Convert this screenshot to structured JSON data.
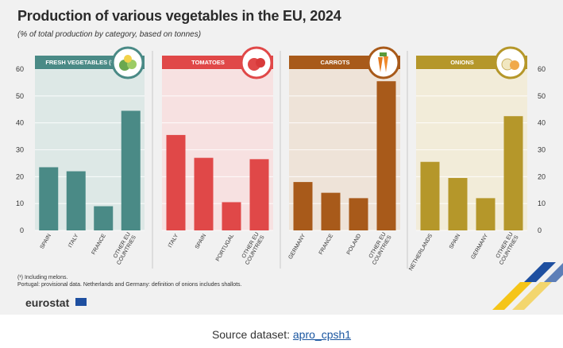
{
  "title": "Production of various vegetables in the EU, 2024",
  "subtitle": "(% of total production by category, based on tonnes)",
  "footnotes": [
    "(¹) Including melons.",
    "Portugal: provisional data. Netherlands and Germany: definition of onions includes shallots."
  ],
  "logo_text": "eurostat",
  "source_label": "Source dataset:",
  "source_link": "apro_cpsh1",
  "chart_data": [
    {
      "type": "bar",
      "title": "FRESH VEGETABLES (¹)",
      "categories": [
        "SPAIN",
        "ITALY",
        "FRANCE",
        "OTHER EU COUNTRIES"
      ],
      "values": [
        23.5,
        22,
        9,
        44.5
      ],
      "ylim": [
        0,
        60
      ],
      "yticks": [
        0,
        10,
        20,
        30,
        40,
        50,
        60
      ],
      "color": "#4a8a86",
      "bg": "#dde8e6",
      "icon": "vegetables-icon"
    },
    {
      "type": "bar",
      "title": "TOMATOES",
      "categories": [
        "ITALY",
        "SPAIN",
        "PORTUGAL",
        "OTHER EU COUNTRIES"
      ],
      "values": [
        35.5,
        27,
        10.5,
        26.5
      ],
      "ylim": [
        0,
        60
      ],
      "yticks": [
        0,
        10,
        20,
        30,
        40,
        50,
        60
      ],
      "color": "#e04848",
      "bg": "#f7e1e1",
      "icon": "tomato-icon"
    },
    {
      "type": "bar",
      "title": "CARROTS",
      "categories": [
        "GERMANY",
        "FRANCE",
        "POLAND",
        "OTHER EU COUNTRIES"
      ],
      "values": [
        18,
        14,
        12,
        55.5
      ],
      "ylim": [
        0,
        60
      ],
      "yticks": [
        0,
        10,
        20,
        30,
        40,
        50,
        60
      ],
      "color": "#a85a1a",
      "bg": "#eee3d8",
      "icon": "carrot-icon"
    },
    {
      "type": "bar",
      "title": "ONIONS",
      "categories": [
        "NETHERLANDS",
        "SPAIN",
        "GERMANY",
        "OTHER EU COUNTRIES"
      ],
      "values": [
        25.5,
        19.5,
        12,
        42.5
      ],
      "ylim": [
        0,
        60
      ],
      "yticks": [
        0,
        10,
        20,
        30,
        40,
        50,
        60
      ],
      "color": "#b5972a",
      "bg": "#f2ecd9",
      "icon": "onion-icon"
    }
  ]
}
